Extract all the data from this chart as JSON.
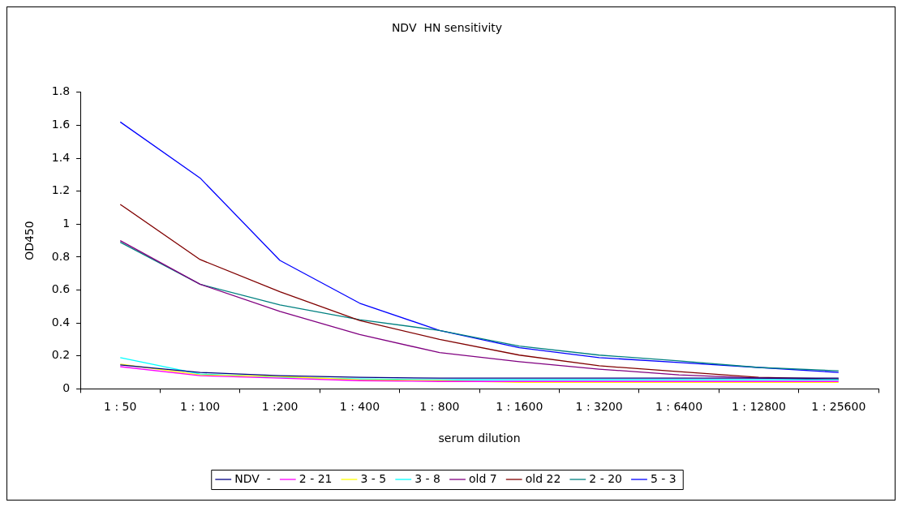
{
  "chart_data": {
    "type": "line",
    "title": "NDV  HN sensitivity",
    "xlabel": "serum dilution",
    "ylabel": "OD450",
    "categories": [
      "1 : 50",
      "1 : 100",
      "1 :200",
      "1 : 400",
      "1 : 800",
      "1 : 1600",
      "1 : 3200",
      "1 : 6400",
      "1 : 12800",
      "1 : 25600"
    ],
    "series": [
      {
        "name": "NDV  -",
        "color": "#000080",
        "values": [
          0.145,
          0.1,
          0.08,
          0.07,
          0.065,
          0.065,
          0.065,
          0.065,
          0.065,
          0.065
        ]
      },
      {
        "name": "2 - 21",
        "color": "#ff00ff",
        "values": [
          0.135,
          0.08,
          0.065,
          0.05,
          0.045,
          0.045,
          0.045,
          0.045,
          0.045,
          0.045
        ]
      },
      {
        "name": "3 - 5",
        "color": "#ffff00",
        "values": [
          0.15,
          0.085,
          0.075,
          0.055,
          0.05,
          0.04,
          0.04,
          0.04,
          0.04,
          0.04
        ]
      },
      {
        "name": "3 - 8",
        "color": "#00ffff",
        "values": [
          0.19,
          0.09,
          0.07,
          0.06,
          0.055,
          0.055,
          0.055,
          0.055,
          0.055,
          0.055
        ]
      },
      {
        "name": "old 7",
        "color": "#800080",
        "values": [
          0.9,
          0.635,
          0.47,
          0.33,
          0.22,
          0.165,
          0.12,
          0.085,
          0.065,
          0.055
        ]
      },
      {
        "name": "old 22",
        "color": "#800000",
        "values": [
          1.12,
          0.785,
          0.59,
          0.415,
          0.3,
          0.205,
          0.14,
          0.105,
          0.07,
          0.06
        ]
      },
      {
        "name": "2 - 20",
        "color": "#008080",
        "values": [
          0.89,
          0.635,
          0.51,
          0.42,
          0.355,
          0.26,
          0.205,
          0.17,
          0.13,
          0.11
        ]
      },
      {
        "name": "5 - 3",
        "color": "#0000ff",
        "values": [
          1.62,
          1.28,
          0.78,
          0.52,
          0.355,
          0.25,
          0.19,
          0.16,
          0.13,
          0.1
        ]
      }
    ],
    "ylim": [
      0,
      1.8
    ],
    "yticks": [
      0,
      0.2,
      0.4,
      0.6,
      0.8,
      1,
      1.2,
      1.4,
      1.6,
      1.8
    ],
    "grid": false,
    "legend": "bottom",
    "marker": "none",
    "line_style": "solid"
  }
}
